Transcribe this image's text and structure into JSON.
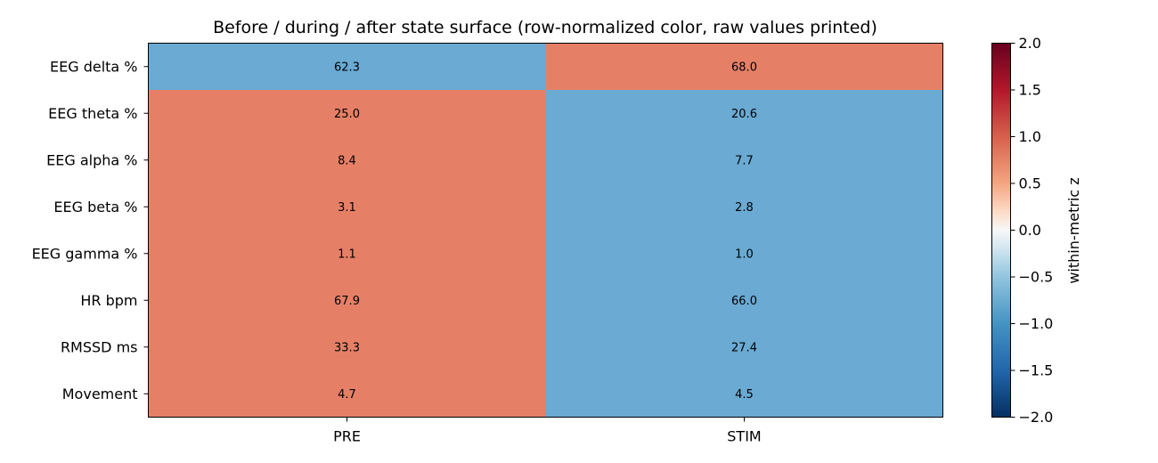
{
  "chart_data": {
    "type": "heatmap",
    "title": "Before / during / after state surface (row-normalized color, raw values printed)",
    "columns": [
      "PRE",
      "STIM"
    ],
    "rows": [
      "EEG delta %",
      "EEG theta %",
      "EEG alpha %",
      "EEG beta %",
      "EEG gamma %",
      "HR bpm",
      "RMSSD ms",
      "Movement"
    ],
    "values": [
      [
        62.3,
        68.0
      ],
      [
        25.0,
        20.6
      ],
      [
        8.4,
        7.7
      ],
      [
        3.1,
        2.8
      ],
      [
        1.1,
        1.0
      ],
      [
        67.9,
        66.0
      ],
      [
        33.3,
        27.4
      ],
      [
        4.7,
        4.5
      ]
    ],
    "value_labels": [
      [
        "62.3",
        "68.0"
      ],
      [
        "25.0",
        "20.6"
      ],
      [
        "8.4",
        "7.7"
      ],
      [
        "3.1",
        "2.8"
      ],
      [
        "1.1",
        "1.0"
      ],
      [
        "67.9",
        "66.0"
      ],
      [
        "33.3",
        "27.4"
      ],
      [
        "4.7",
        "4.5"
      ]
    ],
    "z_values": [
      [
        -1.0,
        1.0
      ],
      [
        1.0,
        -1.0
      ],
      [
        1.0,
        -1.0
      ],
      [
        1.0,
        -1.0
      ],
      [
        1.0,
        -1.0
      ],
      [
        1.0,
        -1.0
      ],
      [
        1.0,
        -1.0
      ],
      [
        1.0,
        -1.0
      ]
    ],
    "colorbar": {
      "label": "within-metric z",
      "range": [
        -2.0,
        2.0
      ],
      "ticks": [
        2.0,
        1.5,
        1.0,
        0.5,
        0.0,
        -0.5,
        -1.0,
        -1.5,
        -2.0
      ],
      "tick_labels": [
        "2.0",
        "1.5",
        "1.0",
        "0.5",
        "0.0",
        "−0.5",
        "−1.0",
        "−1.5",
        "−2.0"
      ],
      "colormap": "RdBu_r"
    },
    "colors": {
      "cold": "#6aaad3",
      "warm": "#e58067"
    }
  }
}
